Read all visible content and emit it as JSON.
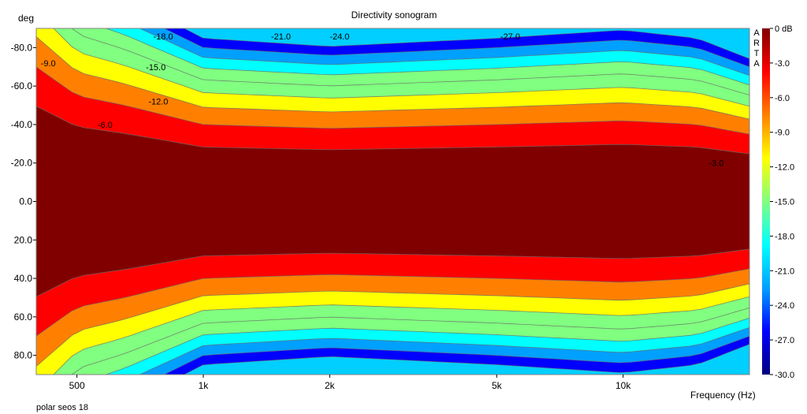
{
  "chart_data": {
    "type": "heatmap",
    "title": "Directivity sonogram",
    "ylabel": "deg",
    "xlabel": "Frequency (Hz)",
    "footnote": "polar seos 18",
    "brand": [
      "A",
      "R",
      "T",
      "A"
    ],
    "x_scale": "log",
    "xlim": [
      400,
      20000
    ],
    "ylim": [
      -90,
      90
    ],
    "x_ticks": [
      {
        "value": 500,
        "label": "500"
      },
      {
        "value": 1000,
        "label": "1k"
      },
      {
        "value": 2000,
        "label": "2k"
      },
      {
        "value": 5000,
        "label": "5k"
      },
      {
        "value": 10000,
        "label": "10k"
      }
    ],
    "y_ticks": [
      {
        "value": -80,
        "label": "-80.0"
      },
      {
        "value": -60,
        "label": "-60.0"
      },
      {
        "value": -40,
        "label": "-40.0"
      },
      {
        "value": -20,
        "label": "-20.0"
      },
      {
        "value": 0,
        "label": "0.0"
      },
      {
        "value": 20,
        "label": "20.0"
      },
      {
        "value": 40,
        "label": "40.0"
      },
      {
        "value": 60,
        "label": "60.0"
      },
      {
        "value": 80,
        "label": "80.0"
      }
    ],
    "colorbar": {
      "range": [
        -30,
        0
      ],
      "unit": "dB",
      "ticks": [
        {
          "value": 0,
          "label": "0 dB"
        },
        {
          "value": -3,
          "label": "-3.0"
        },
        {
          "value": -6,
          "label": "-6.0"
        },
        {
          "value": -9,
          "label": "-9.0"
        },
        {
          "value": -12,
          "label": "-12.0"
        },
        {
          "value": -15,
          "label": "-15.0"
        },
        {
          "value": -18,
          "label": "-18.0"
        },
        {
          "value": -21,
          "label": "-21.0"
        },
        {
          "value": -24,
          "label": "-24.0"
        },
        {
          "value": -27,
          "label": "-27.0"
        },
        {
          "value": -30,
          "label": "-30.0"
        }
      ],
      "colors": [
        "#000080",
        "#0000ff",
        "#00a0ff",
        "#00ffff",
        "#80ff80",
        "#ffff00",
        "#ff8000",
        "#ff0000",
        "#800000"
      ]
    },
    "beamwidth_deg": [
      {
        "freq": 400,
        "half_angle_6db": 70
      },
      {
        "freq": 500,
        "half_angle_6db": 55
      },
      {
        "freq": 650,
        "half_angle_6db": 50
      },
      {
        "freq": 1000,
        "half_angle_6db": 40
      },
      {
        "freq": 2000,
        "half_angle_6db": 38
      },
      {
        "freq": 5000,
        "half_angle_6db": 40
      },
      {
        "freq": 10000,
        "half_angle_6db": 42
      },
      {
        "freq": 15000,
        "half_angle_6db": 40
      },
      {
        "freq": 20000,
        "half_angle_6db": 35
      }
    ],
    "contour_labels": [
      {
        "freq": 410,
        "angle": -72,
        "label": "-9.0"
      },
      {
        "freq": 560,
        "angle": -40,
        "label": "-6.0"
      },
      {
        "freq": 730,
        "angle": -70,
        "label": "-15.0"
      },
      {
        "freq": 740,
        "angle": -52,
        "label": "-12.0"
      },
      {
        "freq": 760,
        "angle": -86,
        "label": "-18.0"
      },
      {
        "freq": 1450,
        "angle": -86,
        "label": "-21.0"
      },
      {
        "freq": 2000,
        "angle": -86,
        "label": "-24.0"
      },
      {
        "freq": 5100,
        "angle": -86,
        "label": "-27.0"
      },
      {
        "freq": 16000,
        "angle": -20,
        "label": "-3.0"
      }
    ]
  }
}
